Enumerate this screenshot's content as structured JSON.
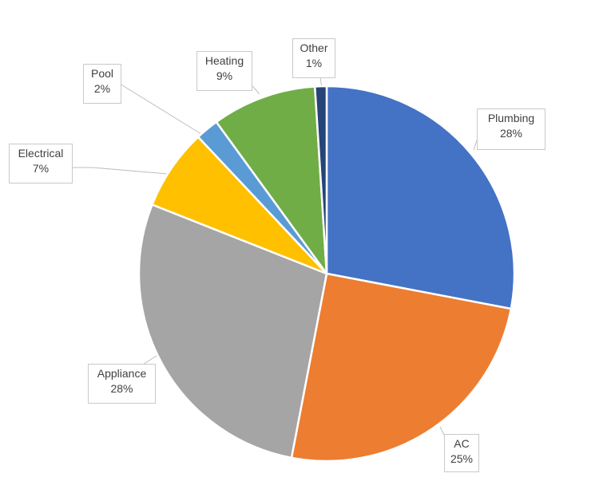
{
  "chart_data": {
    "type": "pie",
    "title": "",
    "legend": "none",
    "slices": [
      {
        "name": "Plumbing",
        "value": 28,
        "label": "28%",
        "color": "#4472C4"
      },
      {
        "name": "AC",
        "value": 25,
        "label": "25%",
        "color": "#ED7D31"
      },
      {
        "name": "Appliance",
        "value": 28,
        "label": "28%",
        "color": "#A5A5A5"
      },
      {
        "name": "Electrical",
        "value": 7,
        "label": "7%",
        "color": "#FFC000"
      },
      {
        "name": "Pool",
        "value": 2,
        "label": "2%",
        "color": "#5B9BD5"
      },
      {
        "name": "Heating",
        "value": 9,
        "label": "9%",
        "color": "#70AD47"
      },
      {
        "name": "Other",
        "value": 1,
        "label": "1%",
        "color": "#264478"
      }
    ]
  }
}
